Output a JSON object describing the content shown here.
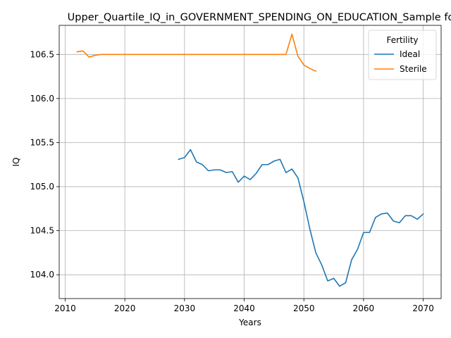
{
  "chart_data": {
    "type": "line",
    "title": "Upper_Quartile_IQ_in_GOVERNMENT_SPENDING_ON_EDUCATION_Sample fo",
    "xlabel": "Years",
    "ylabel": "IQ",
    "xlim": [
      2009,
      2073
    ],
    "ylim": [
      103.73,
      106.83
    ],
    "xticks": [
      2010,
      2020,
      2030,
      2040,
      2050,
      2060,
      2070
    ],
    "yticks": [
      104.0,
      104.5,
      105.0,
      105.5,
      106.0,
      106.5
    ],
    "ytick_labels": [
      "104.0",
      "104.5",
      "105.0",
      "105.5",
      "106.0",
      "106.5"
    ],
    "grid": true,
    "legend": {
      "title": "Fertility",
      "placement": "top-right"
    },
    "series": [
      {
        "name": "Ideal",
        "color": "#1f77b4",
        "x": [
          2029,
          2030,
          2031,
          2032,
          2033,
          2034,
          2035,
          2036,
          2037,
          2038,
          2039,
          2040,
          2041,
          2042,
          2043,
          2044,
          2045,
          2046,
          2047,
          2048,
          2049,
          2050,
          2051,
          2052,
          2053,
          2054,
          2055,
          2056,
          2057,
          2058,
          2059,
          2060,
          2061,
          2062,
          2063,
          2064,
          2065,
          2066,
          2067,
          2068,
          2069,
          2070
        ],
        "y": [
          105.31,
          105.33,
          105.42,
          105.28,
          105.25,
          105.18,
          105.19,
          105.19,
          105.16,
          105.17,
          105.05,
          105.12,
          105.08,
          105.15,
          105.25,
          105.25,
          105.29,
          105.31,
          105.16,
          105.2,
          105.1,
          104.83,
          104.52,
          104.25,
          104.11,
          103.93,
          103.96,
          103.87,
          103.91,
          104.17,
          104.29,
          104.48,
          104.48,
          104.65,
          104.69,
          104.7,
          104.61,
          104.59,
          104.67,
          104.67,
          104.63,
          104.69
        ]
      },
      {
        "name": "Sterile",
        "color": "#ff7f0e",
        "x": [
          2012,
          2013,
          2014,
          2015,
          2016,
          2017,
          2018,
          2019,
          2020,
          2021,
          2022,
          2023,
          2024,
          2025,
          2026,
          2027,
          2028,
          2029,
          2030,
          2031,
          2032,
          2033,
          2034,
          2035,
          2036,
          2037,
          2038,
          2039,
          2040,
          2041,
          2042,
          2043,
          2044,
          2045,
          2046,
          2047,
          2048,
          2049,
          2050,
          2051,
          2052
        ],
        "y": [
          106.53,
          106.54,
          106.47,
          106.49,
          106.5,
          106.5,
          106.5,
          106.5,
          106.5,
          106.5,
          106.5,
          106.5,
          106.5,
          106.5,
          106.5,
          106.5,
          106.5,
          106.5,
          106.5,
          106.5,
          106.5,
          106.5,
          106.5,
          106.5,
          106.5,
          106.5,
          106.5,
          106.5,
          106.5,
          106.5,
          106.5,
          106.5,
          106.5,
          106.5,
          106.5,
          106.5,
          106.73,
          106.48,
          106.38,
          106.34,
          106.31
        ]
      }
    ]
  }
}
